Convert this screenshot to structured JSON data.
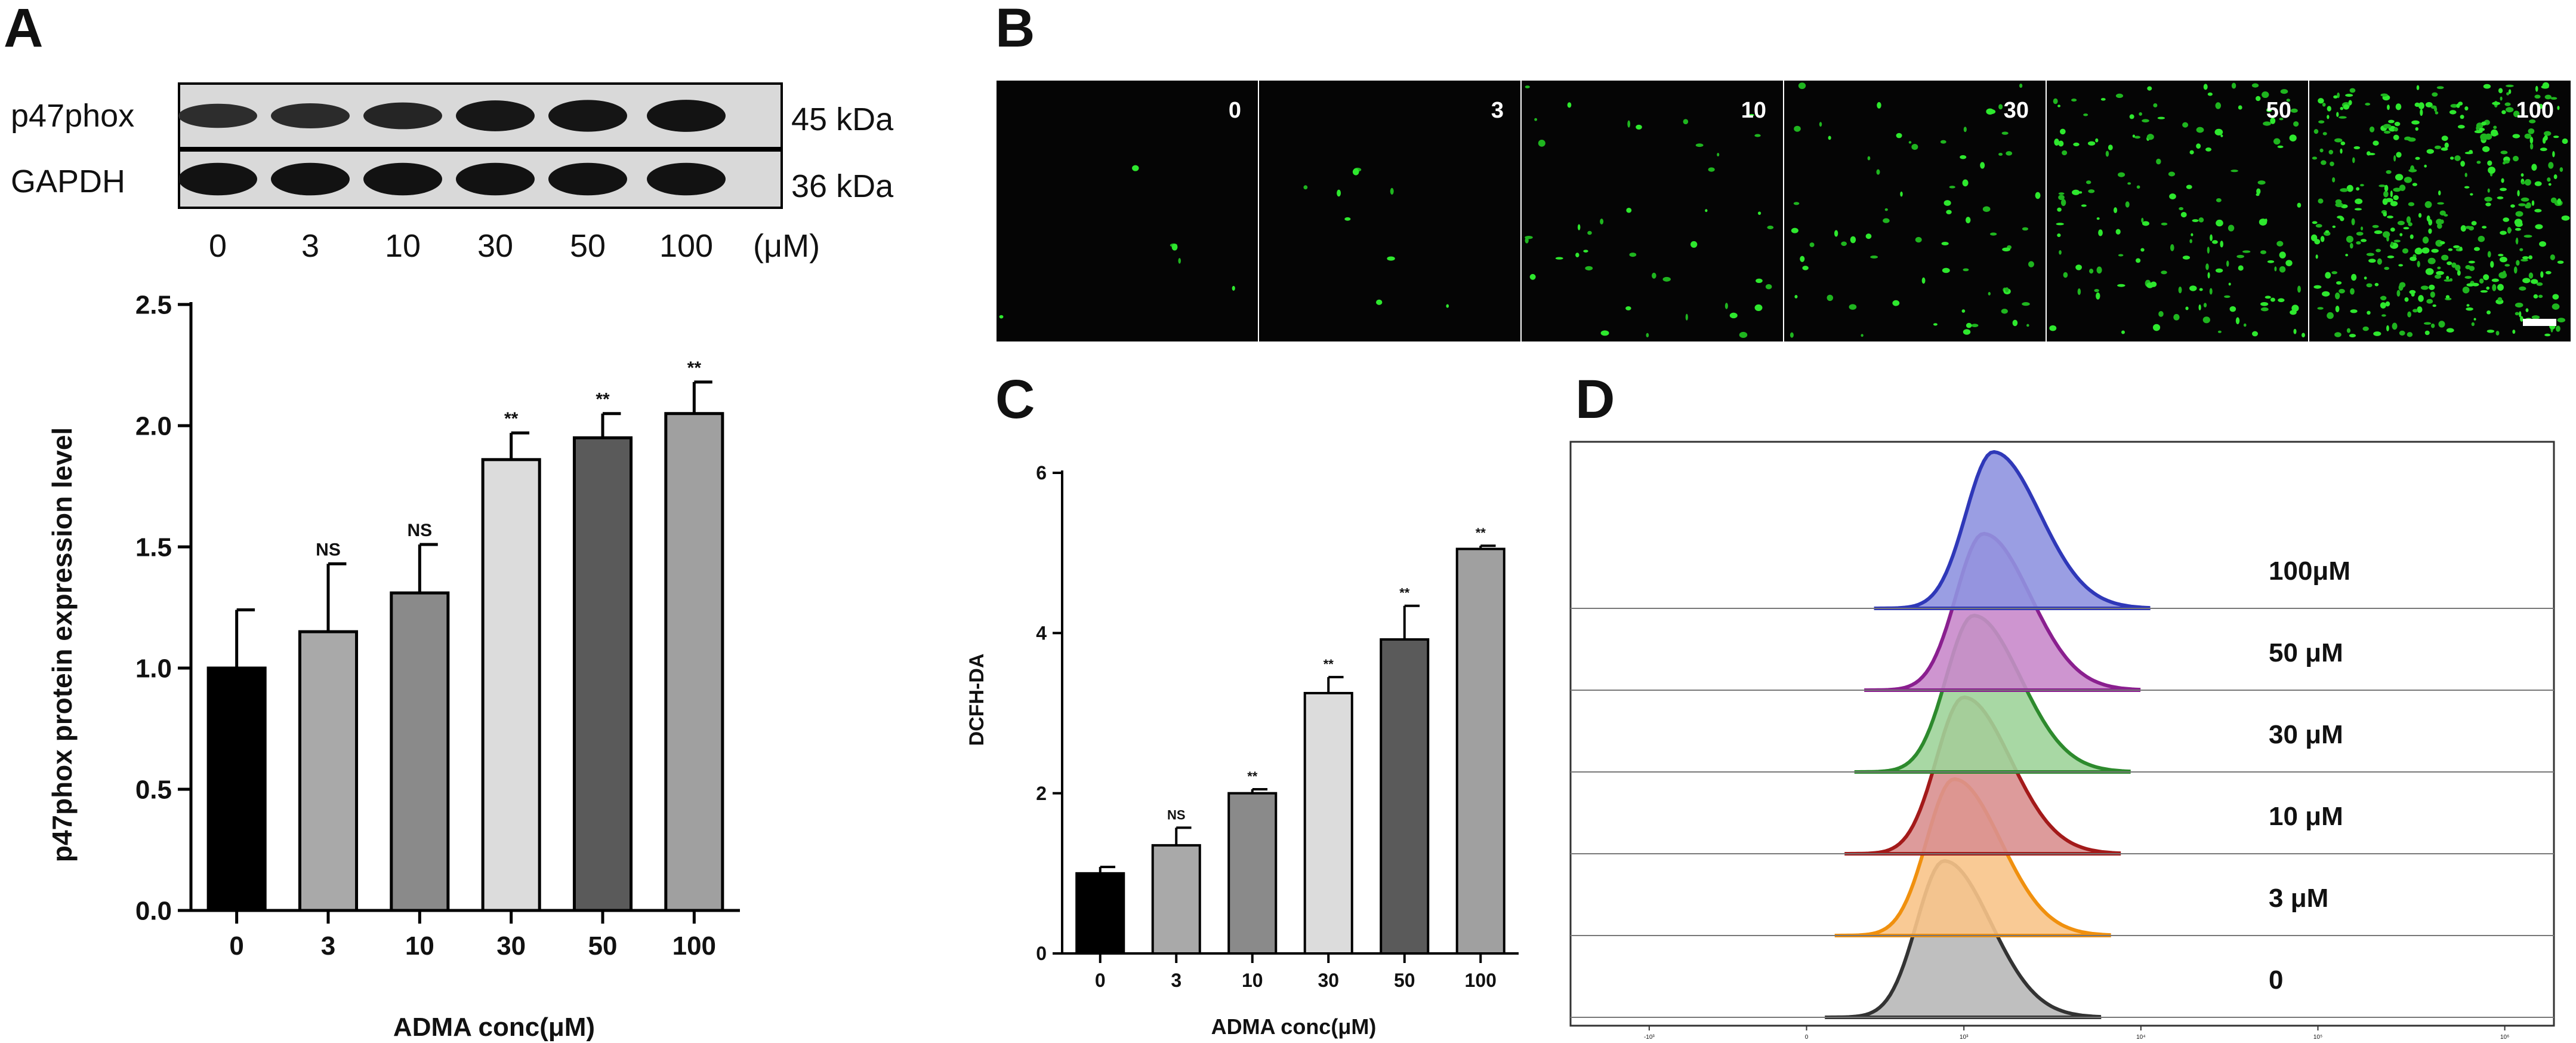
{
  "panels": {
    "a": "A",
    "b": "B",
    "c": "C",
    "d": "D"
  },
  "western_blot": {
    "bands": [
      "p47phox",
      "GAPDH"
    ],
    "sizes": [
      "45 kDa",
      "36 kDa"
    ],
    "lanes": [
      "0",
      "3",
      "10",
      "30",
      "50",
      "100"
    ],
    "unit": "(μM)",
    "band_intensity": [
      [
        0.45,
        0.5,
        0.6,
        0.85,
        0.9,
        0.92
      ],
      [
        0.95,
        0.95,
        0.95,
        0.95,
        0.95,
        0.95
      ]
    ]
  },
  "fluorescence": {
    "labels": [
      "0",
      "3",
      "10",
      "30",
      "50",
      "100"
    ],
    "cell_density": [
      6,
      9,
      40,
      70,
      160,
      420
    ]
  },
  "flow": {
    "labels": [
      "100μM",
      "50  μM",
      "30  μM",
      "10  μM",
      "3 μM",
      "0"
    ],
    "colors": [
      "#2f38b8",
      "#8a1f8f",
      "#2d8a2d",
      "#a31a1a",
      "#f0900e",
      "#333333"
    ],
    "fills": [
      "#8f93e0",
      "#c98acb",
      "#9fd49a",
      "#d99090",
      "#f8c48a",
      "#b8b8b8"
    ],
    "peak_x": [
      0.43,
      0.42,
      0.41,
      0.4,
      0.39,
      0.38
    ],
    "x_ticks": [
      "-10³",
      "0",
      "10³",
      "10⁴",
      "10⁵",
      "10⁶",
      "10⁷"
    ]
  },
  "chart_data": [
    {
      "type": "bar",
      "panel": "A",
      "categories": [
        "0",
        "3",
        "10",
        "30",
        "50",
        "100"
      ],
      "values": [
        1.0,
        1.15,
        1.31,
        1.86,
        1.95,
        2.05
      ],
      "errors": [
        0.24,
        0.28,
        0.2,
        0.11,
        0.1,
        0.13
      ],
      "significance": [
        "",
        "NS",
        "NS",
        "**",
        "**",
        "**"
      ],
      "colors": [
        "#000000",
        "#a9a9a9",
        "#8a8a8a",
        "#dcdcdc",
        "#5a5a5a",
        "#a0a0a0"
      ],
      "xlabel": "ADMA conc(μM)",
      "ylabel": "p47phox protein expression level",
      "ylim": [
        0,
        2.5
      ],
      "yticks": [
        "0.0",
        "0.5",
        "1.0",
        "1.5",
        "2.0",
        "2.5"
      ]
    },
    {
      "type": "bar",
      "panel": "C",
      "categories": [
        "0",
        "3",
        "10",
        "30",
        "50",
        "100"
      ],
      "values": [
        1.0,
        1.35,
        2.0,
        3.25,
        3.92,
        5.05
      ],
      "errors": [
        0.08,
        0.22,
        0.05,
        0.2,
        0.42,
        0.04
      ],
      "significance": [
        "",
        "NS",
        "**",
        "**",
        "**",
        "**"
      ],
      "colors": [
        "#000000",
        "#a9a9a9",
        "#8a8a8a",
        "#dcdcdc",
        "#5a5a5a",
        "#a0a0a0"
      ],
      "xlabel": "ADMA conc(μM)",
      "ylabel": "DCFH-DA",
      "ylim": [
        0,
        6
      ],
      "yticks": [
        "0",
        "2",
        "4",
        "6"
      ]
    }
  ]
}
